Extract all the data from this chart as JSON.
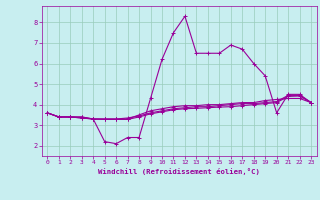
{
  "x": [
    0,
    1,
    2,
    3,
    4,
    5,
    6,
    7,
    8,
    9,
    10,
    11,
    12,
    13,
    14,
    15,
    16,
    17,
    18,
    19,
    20,
    21,
    22,
    23
  ],
  "line1": [
    3.6,
    3.4,
    3.4,
    3.4,
    3.3,
    2.2,
    2.1,
    2.4,
    2.4,
    4.3,
    6.2,
    7.5,
    8.3,
    6.5,
    6.5,
    6.5,
    6.9,
    6.7,
    6.0,
    5.4,
    3.6,
    4.5,
    4.5,
    4.1
  ],
  "line2": [
    3.6,
    3.4,
    3.4,
    3.4,
    3.3,
    3.3,
    3.3,
    3.3,
    3.5,
    3.7,
    3.8,
    3.9,
    3.95,
    3.95,
    4.0,
    4.0,
    4.05,
    4.1,
    4.1,
    4.2,
    4.25,
    4.3,
    4.3,
    4.1
  ],
  "line3": [
    3.6,
    3.4,
    3.4,
    3.35,
    3.3,
    3.3,
    3.3,
    3.35,
    3.45,
    3.6,
    3.7,
    3.8,
    3.85,
    3.9,
    3.9,
    3.95,
    4.0,
    4.05,
    4.05,
    4.1,
    4.15,
    4.45,
    4.45,
    4.1
  ],
  "line4": [
    3.6,
    3.4,
    3.4,
    3.35,
    3.3,
    3.28,
    3.28,
    3.28,
    3.4,
    3.55,
    3.65,
    3.75,
    3.8,
    3.82,
    3.85,
    3.88,
    3.9,
    3.95,
    4.0,
    4.05,
    4.1,
    4.4,
    4.42,
    4.1
  ],
  "line_color": "#990099",
  "bg_color": "#c8eef0",
  "grid_color": "#99ccbb",
  "xlabel": "Windchill (Refroidissement éolien,°C)",
  "ylim": [
    1.5,
    8.8
  ],
  "xlim": [
    -0.5,
    23.5
  ],
  "yticks": [
    2,
    3,
    4,
    5,
    6,
    7,
    8
  ],
  "xticks": [
    0,
    1,
    2,
    3,
    4,
    5,
    6,
    7,
    8,
    9,
    10,
    11,
    12,
    13,
    14,
    15,
    16,
    17,
    18,
    19,
    20,
    21,
    22,
    23
  ]
}
